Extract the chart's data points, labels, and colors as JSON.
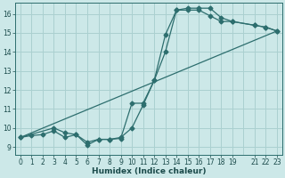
{
  "xlabel": "Humidex (Indice chaleur)",
  "background_color": "#cce8e8",
  "line_color": "#2d6e6e",
  "grid_color": "#aad0d0",
  "xlim": [
    -0.5,
    23.5
  ],
  "ylim": [
    8.6,
    16.6
  ],
  "xticks": [
    0,
    1,
    2,
    3,
    4,
    5,
    6,
    7,
    8,
    9,
    10,
    11,
    12,
    13,
    14,
    15,
    16,
    17,
    18,
    19,
    21,
    22,
    23
  ],
  "yticks": [
    9,
    10,
    11,
    12,
    13,
    14,
    15,
    16
  ],
  "line1_x": [
    0,
    1,
    2,
    3,
    4,
    5,
    6,
    7,
    8,
    9,
    10,
    11,
    12,
    13,
    14,
    15,
    16,
    17,
    18,
    19,
    21,
    22,
    23
  ],
  "line1_y": [
    9.5,
    9.6,
    9.65,
    9.85,
    9.5,
    9.65,
    9.25,
    9.4,
    9.4,
    9.5,
    10.0,
    11.2,
    12.5,
    14.0,
    16.2,
    16.3,
    16.3,
    16.3,
    15.8,
    15.6,
    15.4,
    15.3,
    15.1
  ],
  "line2_x": [
    0,
    3,
    4,
    5,
    6,
    7,
    8,
    9,
    10,
    11,
    12,
    13,
    14,
    15,
    16,
    17,
    18,
    19,
    21,
    22,
    23
  ],
  "line2_y": [
    9.5,
    10.0,
    9.75,
    9.65,
    9.1,
    9.4,
    9.4,
    9.45,
    11.3,
    11.3,
    12.5,
    14.9,
    16.2,
    16.2,
    16.2,
    15.9,
    15.6,
    15.6,
    15.4,
    15.3,
    15.1
  ],
  "line3_x": [
    0,
    23
  ],
  "line3_y": [
    9.5,
    15.1
  ],
  "marker_size": 2.5,
  "linewidth": 0.9,
  "tick_fontsize": 5.5,
  "xlabel_fontsize": 6.5
}
